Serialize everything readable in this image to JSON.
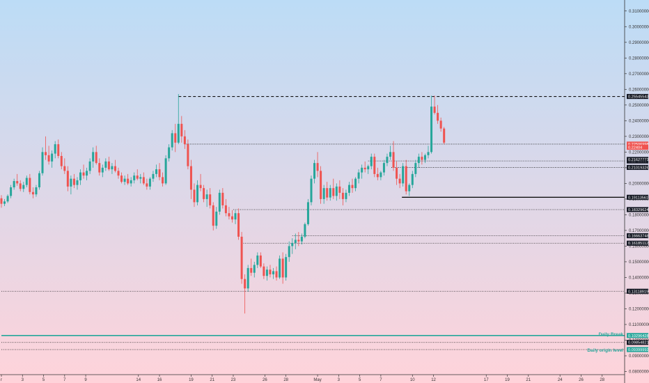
{
  "colors": {
    "bg_top": "#bcdcf6",
    "bg_bottom": "#ffd3da",
    "up": "#26a69a",
    "down": "#ef5350",
    "tag_dark": "#131722",
    "tag_red": "#ef5350",
    "tag_teal": "#26a69a",
    "teal_line": "#26a69a"
  },
  "chart_data": {
    "type": "candlestick",
    "grid": false,
    "ylim": [
      0.078,
      0.317
    ],
    "price_axis_ticks": [
      "0.31000000",
      "0.30000000",
      "0.29000000",
      "0.28000000",
      "0.27000000",
      "0.26000000",
      "0.25000000",
      "0.24000000",
      "0.23000000",
      "0.22000000",
      "0.21000000",
      "0.20000000",
      "0.19000000",
      "0.18000000",
      "0.17000000",
      "0.16000000",
      "0.15000000",
      "0.14000000",
      "0.13000000",
      "0.12000000",
      "0.11000000",
      "0.10000000",
      "0.09000000",
      "0.08000000"
    ],
    "time_axis_ticks": [
      {
        "label": "r",
        "day": 0
      },
      {
        "label": "3",
        "day": 2
      },
      {
        "label": "5",
        "day": 4
      },
      {
        "label": "7",
        "day": 6
      },
      {
        "label": "9",
        "day": 8
      },
      {
        "label": "14",
        "day": 13
      },
      {
        "label": "16",
        "day": 15
      },
      {
        "label": "19",
        "day": 18
      },
      {
        "label": "21",
        "day": 20
      },
      {
        "label": "23",
        "day": 22
      },
      {
        "label": "26",
        "day": 25
      },
      {
        "label": "28",
        "day": 27
      },
      {
        "label": "May",
        "day": 30
      },
      {
        "label": "3",
        "day": 32
      },
      {
        "label": "5",
        "day": 34
      },
      {
        "label": "7",
        "day": 36
      },
      {
        "label": "10",
        "day": 39
      },
      {
        "label": "12",
        "day": 41
      },
      {
        "label": "17",
        "day": 46
      },
      {
        "label": "19",
        "day": 48
      },
      {
        "label": "21",
        "day": 50
      },
      {
        "label": "24",
        "day": 53
      },
      {
        "label": "26",
        "day": 55
      },
      {
        "label": "28",
        "day": 57
      }
    ],
    "candles": [
      [
        0.0,
        0.1905,
        0.1925,
        0.1845,
        0.187
      ],
      [
        0.3,
        0.187,
        0.19,
        0.1855,
        0.1885
      ],
      [
        0.6,
        0.1885,
        0.193,
        0.1875,
        0.192
      ],
      [
        0.9,
        0.192,
        0.199,
        0.1905,
        0.1975
      ],
      [
        1.2,
        0.1975,
        0.203,
        0.196,
        0.2015
      ],
      [
        1.5,
        0.2015,
        0.206,
        0.1985,
        0.2
      ],
      [
        1.8,
        0.2,
        0.202,
        0.195,
        0.1965
      ],
      [
        2.1,
        0.1965,
        0.201,
        0.1945,
        0.199
      ],
      [
        2.4,
        0.199,
        0.205,
        0.1975,
        0.2035
      ],
      [
        2.7,
        0.2035,
        0.206,
        0.193,
        0.1945
      ],
      [
        3.0,
        0.1945,
        0.1975,
        0.1905,
        0.193
      ],
      [
        3.3,
        0.193,
        0.199,
        0.1915,
        0.1975
      ],
      [
        3.6,
        0.1975,
        0.208,
        0.196,
        0.2065
      ],
      [
        3.9,
        0.2065,
        0.223,
        0.205,
        0.22
      ],
      [
        4.2,
        0.22,
        0.23,
        0.215,
        0.218
      ],
      [
        4.5,
        0.218,
        0.224,
        0.212,
        0.214
      ],
      [
        4.8,
        0.214,
        0.221,
        0.21,
        0.219
      ],
      [
        5.1,
        0.219,
        0.227,
        0.216,
        0.225
      ],
      [
        5.4,
        0.225,
        0.228,
        0.216,
        0.2175
      ],
      [
        5.7,
        0.2175,
        0.22,
        0.209,
        0.211
      ],
      [
        6.0,
        0.211,
        0.216,
        0.206,
        0.208
      ],
      [
        6.3,
        0.208,
        0.211,
        0.195,
        0.198
      ],
      [
        6.6,
        0.198,
        0.205,
        0.193,
        0.203
      ],
      [
        6.9,
        0.203,
        0.206,
        0.197,
        0.199
      ],
      [
        7.2,
        0.199,
        0.204,
        0.196,
        0.202
      ],
      [
        7.5,
        0.202,
        0.209,
        0.199,
        0.207
      ],
      [
        7.8,
        0.207,
        0.212,
        0.203,
        0.205
      ],
      [
        8.1,
        0.205,
        0.21,
        0.202,
        0.208
      ],
      [
        8.4,
        0.208,
        0.216,
        0.206,
        0.214
      ],
      [
        8.7,
        0.214,
        0.223,
        0.21,
        0.22
      ],
      [
        9.0,
        0.22,
        0.224,
        0.212,
        0.213
      ],
      [
        9.3,
        0.213,
        0.216,
        0.205,
        0.207
      ],
      [
        9.6,
        0.207,
        0.212,
        0.204,
        0.21
      ],
      [
        9.9,
        0.21,
        0.216,
        0.208,
        0.214
      ],
      [
        10.2,
        0.214,
        0.217,
        0.208,
        0.209
      ],
      [
        10.5,
        0.209,
        0.213,
        0.206,
        0.211
      ],
      [
        10.8,
        0.211,
        0.215,
        0.207,
        0.208
      ],
      [
        11.1,
        0.208,
        0.21,
        0.203,
        0.205
      ],
      [
        11.4,
        0.205,
        0.207,
        0.2,
        0.201
      ],
      [
        11.7,
        0.201,
        0.205,
        0.199,
        0.203
      ],
      [
        12.0,
        0.203,
        0.206,
        0.199,
        0.2
      ],
      [
        12.3,
        0.2,
        0.204,
        0.198,
        0.202
      ],
      [
        12.6,
        0.202,
        0.207,
        0.2,
        0.205
      ],
      [
        12.9,
        0.205,
        0.209,
        0.202,
        0.203
      ],
      [
        13.2,
        0.203,
        0.206,
        0.2,
        0.204
      ],
      [
        13.5,
        0.204,
        0.207,
        0.199,
        0.2
      ],
      [
        13.8,
        0.2,
        0.203,
        0.196,
        0.198
      ],
      [
        14.1,
        0.198,
        0.204,
        0.196,
        0.203
      ],
      [
        14.4,
        0.203,
        0.208,
        0.201,
        0.206
      ],
      [
        14.7,
        0.206,
        0.212,
        0.204,
        0.209
      ],
      [
        15.0,
        0.209,
        0.213,
        0.202,
        0.204
      ],
      [
        15.3,
        0.204,
        0.207,
        0.198,
        0.2
      ],
      [
        15.6,
        0.2,
        0.218,
        0.199,
        0.216
      ],
      [
        15.9,
        0.216,
        0.225,
        0.214,
        0.223
      ],
      [
        16.2,
        0.223,
        0.234,
        0.221,
        0.232
      ],
      [
        16.5,
        0.232,
        0.238,
        0.22,
        0.226
      ],
      [
        16.8,
        0.226,
        0.257,
        0.225,
        0.238
      ],
      [
        17.1,
        0.238,
        0.243,
        0.226,
        0.23
      ],
      [
        17.4,
        0.23,
        0.234,
        0.222,
        0.225
      ],
      [
        17.7,
        0.225,
        0.228,
        0.209,
        0.211
      ],
      [
        18.0,
        0.211,
        0.215,
        0.19,
        0.196
      ],
      [
        18.3,
        0.196,
        0.2,
        0.185,
        0.188
      ],
      [
        18.6,
        0.188,
        0.202,
        0.186,
        0.199
      ],
      [
        18.9,
        0.199,
        0.206,
        0.195,
        0.197
      ],
      [
        19.2,
        0.197,
        0.199,
        0.188,
        0.19
      ],
      [
        19.5,
        0.19,
        0.196,
        0.185,
        0.193
      ],
      [
        19.8,
        0.193,
        0.197,
        0.184,
        0.186
      ],
      [
        20.1,
        0.186,
        0.188,
        0.17,
        0.173
      ],
      [
        20.4,
        0.173,
        0.185,
        0.171,
        0.182
      ],
      [
        20.7,
        0.182,
        0.196,
        0.18,
        0.194
      ],
      [
        21.0,
        0.194,
        0.197,
        0.184,
        0.186
      ],
      [
        21.3,
        0.186,
        0.19,
        0.179,
        0.181
      ],
      [
        21.6,
        0.181,
        0.185,
        0.177,
        0.179
      ],
      [
        21.9,
        0.179,
        0.183,
        0.175,
        0.177
      ],
      [
        22.2,
        0.177,
        0.183,
        0.174,
        0.181
      ],
      [
        22.5,
        0.181,
        0.184,
        0.164,
        0.166
      ],
      [
        22.8,
        0.166,
        0.169,
        0.136,
        0.139
      ],
      [
        23.1,
        0.139,
        0.142,
        0.117,
        0.133
      ],
      [
        23.4,
        0.133,
        0.148,
        0.131,
        0.146
      ],
      [
        23.7,
        0.146,
        0.152,
        0.141,
        0.143
      ],
      [
        24.0,
        0.143,
        0.15,
        0.14,
        0.148
      ],
      [
        24.3,
        0.148,
        0.156,
        0.146,
        0.154
      ],
      [
        24.6,
        0.154,
        0.156,
        0.146,
        0.147
      ],
      [
        24.9,
        0.147,
        0.149,
        0.139,
        0.141
      ],
      [
        25.2,
        0.141,
        0.147,
        0.138,
        0.145
      ],
      [
        25.5,
        0.145,
        0.148,
        0.14,
        0.142
      ],
      [
        25.8,
        0.142,
        0.146,
        0.139,
        0.144
      ],
      [
        26.1,
        0.144,
        0.147,
        0.138,
        0.14
      ],
      [
        26.4,
        0.14,
        0.154,
        0.139,
        0.152
      ],
      [
        26.7,
        0.152,
        0.156,
        0.136,
        0.14
      ],
      [
        27.0,
        0.14,
        0.155,
        0.138,
        0.153
      ],
      [
        27.3,
        0.153,
        0.163,
        0.15,
        0.16
      ],
      [
        27.6,
        0.16,
        0.165,
        0.155,
        0.162
      ],
      [
        27.9,
        0.162,
        0.168,
        0.158,
        0.164
      ],
      [
        28.2,
        0.164,
        0.169,
        0.16,
        0.163
      ],
      [
        28.5,
        0.163,
        0.168,
        0.161,
        0.166
      ],
      [
        28.8,
        0.166,
        0.175,
        0.165,
        0.174
      ],
      [
        29.1,
        0.174,
        0.19,
        0.173,
        0.188
      ],
      [
        29.4,
        0.188,
        0.205,
        0.186,
        0.203
      ],
      [
        29.7,
        0.203,
        0.215,
        0.2,
        0.213
      ],
      [
        30.0,
        0.213,
        0.22,
        0.204,
        0.208
      ],
      [
        30.3,
        0.208,
        0.211,
        0.187,
        0.19
      ],
      [
        30.6,
        0.19,
        0.199,
        0.187,
        0.197
      ],
      [
        30.9,
        0.197,
        0.201,
        0.189,
        0.191
      ],
      [
        31.2,
        0.191,
        0.199,
        0.189,
        0.197
      ],
      [
        31.5,
        0.197,
        0.203,
        0.19,
        0.192
      ],
      [
        31.8,
        0.192,
        0.2,
        0.189,
        0.198
      ],
      [
        32.1,
        0.198,
        0.202,
        0.19,
        0.194
      ],
      [
        32.4,
        0.194,
        0.197,
        0.186,
        0.19
      ],
      [
        32.7,
        0.19,
        0.196,
        0.188,
        0.194
      ],
      [
        33.0,
        0.194,
        0.201,
        0.192,
        0.199
      ],
      [
        33.3,
        0.199,
        0.203,
        0.194,
        0.197
      ],
      [
        33.6,
        0.197,
        0.204,
        0.195,
        0.203
      ],
      [
        33.9,
        0.203,
        0.209,
        0.2,
        0.207
      ],
      [
        34.2,
        0.207,
        0.212,
        0.203,
        0.21
      ],
      [
        34.5,
        0.21,
        0.214,
        0.207,
        0.209
      ],
      [
        34.8,
        0.209,
        0.212,
        0.206,
        0.211
      ],
      [
        35.1,
        0.211,
        0.219,
        0.209,
        0.217
      ],
      [
        35.4,
        0.217,
        0.219,
        0.204,
        0.206
      ],
      [
        35.7,
        0.206,
        0.21,
        0.202,
        0.204
      ],
      [
        36.0,
        0.204,
        0.208,
        0.202,
        0.207
      ],
      [
        36.3,
        0.207,
        0.215,
        0.205,
        0.213
      ],
      [
        36.6,
        0.213,
        0.219,
        0.211,
        0.217
      ],
      [
        36.9,
        0.217,
        0.224,
        0.215,
        0.22
      ],
      [
        37.2,
        0.22,
        0.227,
        0.208,
        0.21
      ],
      [
        37.5,
        0.21,
        0.214,
        0.199,
        0.203
      ],
      [
        37.8,
        0.203,
        0.206,
        0.197,
        0.2
      ],
      [
        38.1,
        0.2,
        0.213,
        0.198,
        0.211
      ],
      [
        38.4,
        0.211,
        0.215,
        0.193,
        0.195
      ],
      [
        38.7,
        0.195,
        0.2,
        0.192,
        0.199
      ],
      [
        39.0,
        0.199,
        0.208,
        0.197,
        0.206
      ],
      [
        39.3,
        0.206,
        0.215,
        0.204,
        0.213
      ],
      [
        39.6,
        0.213,
        0.219,
        0.21,
        0.217
      ],
      [
        39.9,
        0.217,
        0.22,
        0.212,
        0.215
      ],
      [
        40.2,
        0.215,
        0.219,
        0.213,
        0.218
      ],
      [
        40.5,
        0.218,
        0.224,
        0.216,
        0.22
      ],
      [
        40.8,
        0.22,
        0.256,
        0.219,
        0.249
      ],
      [
        41.1,
        0.249,
        0.256,
        0.244,
        0.245
      ],
      [
        41.4,
        0.245,
        0.25,
        0.238,
        0.24
      ],
      [
        41.7,
        0.24,
        0.242,
        0.233,
        0.235
      ],
      [
        42.0,
        0.235,
        0.236,
        0.225,
        0.226
      ]
    ],
    "x_day_range": [
      0,
      59
    ]
  },
  "price_tags": [
    {
      "label": "0.25545543",
      "price": 0.25545543,
      "color": "tag_dark"
    },
    {
      "label": "0.22506998",
      "price": 0.22506998,
      "color": "tag_red"
    },
    {
      "label": "0.22404",
      "price": 0.22304,
      "color": "tag_red"
    },
    {
      "label": "0.21433587",
      "price": 0.21433587,
      "color": "tag_dark"
    },
    {
      "label": "0.21627773",
      "price": 0.21627773,
      "color": "tag_dark",
      "shift": -0.001
    },
    {
      "label": "0.21019326",
      "price": 0.21019326,
      "color": "tag_dark"
    },
    {
      "label": "0.19113561",
      "price": 0.19113561,
      "color": "tag_dark"
    },
    {
      "label": "0.18329624",
      "price": 0.18329624,
      "color": "tag_dark"
    },
    {
      "label": "0.16663748",
      "price": 0.16663748,
      "color": "tag_dark"
    },
    {
      "label": "0.16185112",
      "price": 0.16185112,
      "color": "tag_dark"
    },
    {
      "label": "0.13118919",
      "price": 0.13118919,
      "color": "tag_dark"
    },
    {
      "label": "0.10296428",
      "price": 0.10296428,
      "color": "tag_teal"
    },
    {
      "label": "0.09854821",
      "price": 0.09854821,
      "color": "tag_dark"
    },
    {
      "label": "0.09399992",
      "price": 0.09399992,
      "color": "tag_teal"
    }
  ],
  "levels": [
    {
      "name": "high-dashed",
      "price": 0.25545543,
      "style": "dashed",
      "from_day": 16.8
    },
    {
      "name": "res-225",
      "price": 0.22506998,
      "style": "dotted",
      "from_day": 17.4
    },
    {
      "name": "res-2143",
      "price": 0.21433587,
      "style": "dotted",
      "from_day": 34.8
    },
    {
      "name": "res-2102",
      "price": 0.21019326,
      "style": "dotted",
      "from_day": 37.0
    },
    {
      "name": "solid-191",
      "price": 0.19113561,
      "style": "solid",
      "from_day": 38.0
    },
    {
      "name": "sup-183",
      "price": 0.18329624,
      "style": "dotted",
      "from_day": 22.0
    },
    {
      "name": "sup-1666",
      "price": 0.16663748,
      "style": "dotted",
      "from_day": 27.6
    },
    {
      "name": "sup-1618",
      "price": 0.16185112,
      "style": "dotted",
      "from_day": 22.8
    },
    {
      "name": "sup-131",
      "price": 0.13118919,
      "style": "dotted",
      "from_day": 0
    },
    {
      "name": "daily-break",
      "price": 0.10296428,
      "style": "teal",
      "from_day": 0
    },
    {
      "name": "sup-0985",
      "price": 0.09854821,
      "style": "dotted",
      "from_day": 0
    },
    {
      "name": "daily-origin",
      "price": 0.09399992,
      "style": "dotted",
      "from_day": 0
    }
  ],
  "annotations": {
    "daily_break": "Daily Break",
    "daily_origin": "Daily origin level"
  }
}
